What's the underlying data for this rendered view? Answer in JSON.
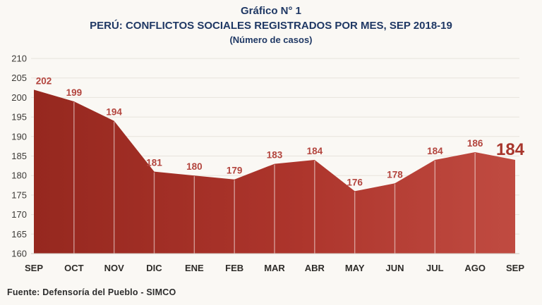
{
  "header": {
    "line1": "Gráfico N° 1",
    "line2": "PERÚ: CONFLICTOS SOCIALES REGISTRADOS POR MES, SEP 2018-19",
    "line3": "(Número de casos)"
  },
  "footer": {
    "source": "Fuente: Defensoría del Pueblo - SIMCO"
  },
  "colors": {
    "title": "#1f3864",
    "background": "#faf8f4",
    "area_gradient_left": "#96281f",
    "area_gradient_right": "#c04b41",
    "grid_line": "#e7e3dc",
    "axis_line": "#cfc9c1",
    "month_divider": "rgba(255,255,255,0.5)",
    "data_label": "#b3453e",
    "data_label_emphasized": "#a8362c",
    "y_tick_label": "#3d3b38",
    "x_tick_label": "#2e2c29",
    "footer_text": "#2d2d2d"
  },
  "chart_data": {
    "type": "area",
    "title": "PERÚ: CONFLICTOS SOCIALES REGISTRADOS POR MES, SEP 2018-19",
    "subtitle": "(Número de casos)",
    "categories": [
      "SEP",
      "OCT",
      "NOV",
      "DIC",
      "ENE",
      "FEB",
      "MAR",
      "ABR",
      "MAY",
      "JUN",
      "JUL",
      "AGO",
      "SEP"
    ],
    "values": [
      202,
      199,
      194,
      181,
      180,
      179,
      183,
      184,
      176,
      178,
      184,
      186,
      184
    ],
    "xlabel": "",
    "ylabel": "",
    "ylim": [
      160,
      210
    ],
    "ytick_step": 5,
    "grid": "horizontal",
    "legend": "none",
    "data_labels": true,
    "last_label_emphasized": true
  }
}
